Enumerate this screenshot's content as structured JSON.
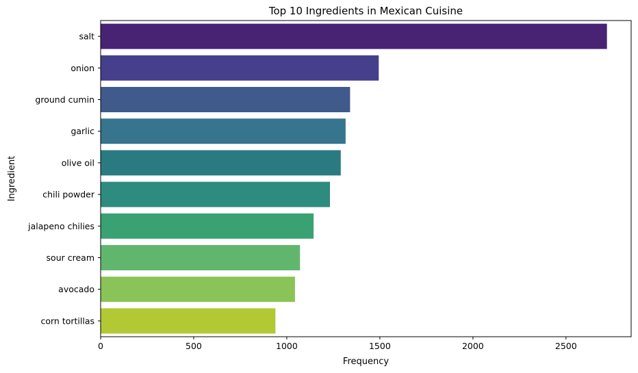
{
  "chart_data": {
    "type": "bar",
    "orientation": "horizontal",
    "title": "Top 10 Ingredients in Mexican Cuisine",
    "xlabel": "Frequency",
    "ylabel": "Ingredient",
    "categories": [
      "salt",
      "onion",
      "ground cumin",
      "garlic",
      "olive oil",
      "chili powder",
      "jalapeno chilies",
      "sour cream",
      "avocado",
      "corn tortillas"
    ],
    "values": [
      2720,
      1494,
      1340,
      1316,
      1290,
      1232,
      1144,
      1071,
      1044,
      939
    ],
    "colors": [
      "#482374",
      "#463f8c",
      "#3f5a8b",
      "#36758d",
      "#2a7b81",
      "#2d8b7f",
      "#3aa173",
      "#61b66e",
      "#8ac358",
      "#b2c934"
    ],
    "xlim": [
      0,
      2850
    ],
    "xticks": [
      0,
      500,
      1000,
      1500,
      2000,
      2500
    ],
    "grid": false
  }
}
